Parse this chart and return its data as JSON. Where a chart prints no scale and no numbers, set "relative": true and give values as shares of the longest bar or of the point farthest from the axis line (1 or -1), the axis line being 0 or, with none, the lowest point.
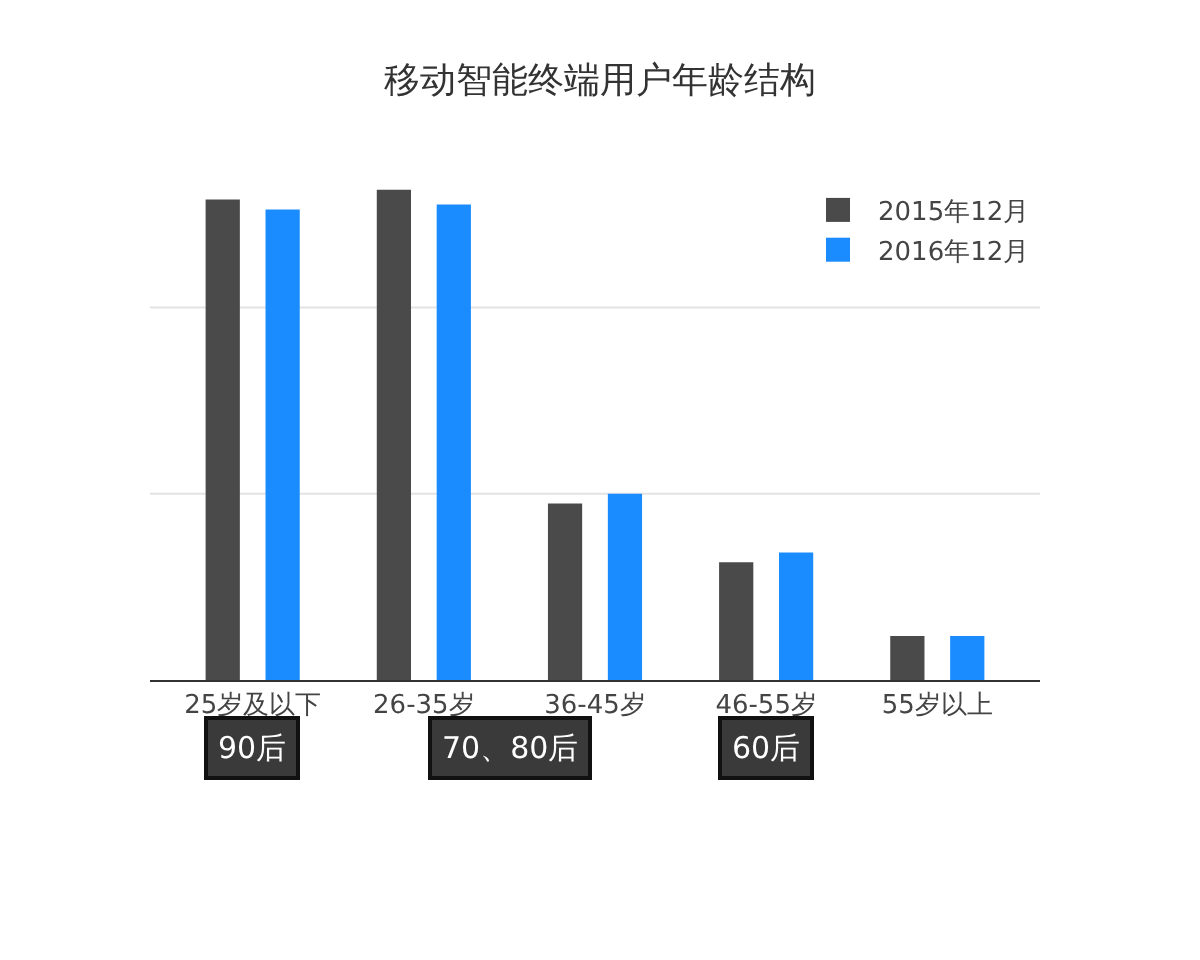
{
  "chart_data": {
    "type": "bar",
    "title": "移动智能终端用户年龄结构",
    "relative": true,
    "ref_lines": [
      {
        "axis": "y",
        "value": 0.38,
        "color": "#e3e3e3"
      },
      {
        "axis": "y",
        "value": 0.76,
        "color": "#e3e3e3"
      }
    ],
    "legend": "top right",
    "categories": [
      "25岁及以下",
      "26-35岁",
      "36-45岁",
      "46-55岁",
      "55岁以上"
    ],
    "series": [
      {
        "name": "2015年12月",
        "color": "#4a4a4a",
        "values": [
          0.98,
          1.0,
          0.36,
          0.24,
          0.09
        ]
      },
      {
        "name": "2016年12月",
        "color": "#1a8cff",
        "values": [
          0.96,
          0.97,
          0.38,
          0.26,
          0.09
        ]
      }
    ],
    "annotations": [
      "90后",
      "70、80后",
      "60后"
    ]
  }
}
